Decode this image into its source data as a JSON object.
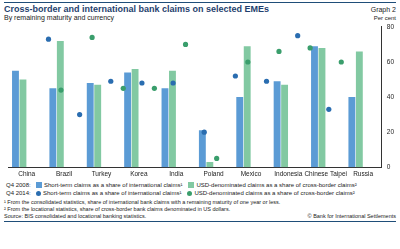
{
  "chart_data": {
    "type": "bar",
    "title": "Cross-border and international bank claims on selected EMEs",
    "graph_label": "Graph 2",
    "subtitle": "By remaining maturity and currency",
    "ylabel": "Per cent",
    "categories": [
      "China",
      "Brazil",
      "Turkey",
      "Korea",
      "India",
      "Poland",
      "Mexico",
      "Indonesia",
      "Chinese Taipei",
      "Russia"
    ],
    "series": [
      {
        "name": "Short-term claims as a share of international claims¹",
        "type": "bar",
        "color": "#5b9bd5",
        "values": [
          55,
          45,
          48,
          54,
          45,
          21,
          40,
          49,
          69,
          40
        ]
      },
      {
        "name": "USD-denominated claims as a share of cross-border claims²",
        "type": "bar",
        "color": "#82c9a2",
        "values": [
          50,
          72,
          47,
          56,
          55,
          3,
          69,
          47,
          68,
          66
        ]
      },
      {
        "name": "Short-term claims as a share of international claims¹",
        "type": "scatter",
        "marker": "circle",
        "color": "#2a6db0",
        "values": [
          73,
          30,
          49,
          48,
          48,
          20,
          52,
          49,
          75,
          33
        ]
      },
      {
        "name": "USD-denominated claims as a share of cross-border claims²",
        "type": "scatter",
        "marker": "circle",
        "color": "#3a9e6c",
        "values": [
          44,
          74,
          45,
          45,
          70,
          5,
          60,
          66,
          68,
          60
        ]
      }
    ],
    "legend_groups": [
      "Q4 2008:",
      "Q4 2014:"
    ],
    "legend": "bottom",
    "ylim": [
      0,
      80
    ],
    "yticks": [
      0,
      20,
      40,
      60,
      80
    ],
    "grid": false,
    "notes": [
      "¹ From the consolidated statistics, share of international bank claims with a remaining maturity of one year or less.",
      "² From the locational statistics, share of cross-border bank claims denominated in US dollars."
    ],
    "source": "Source: BIS consolidated and locational banking statistics.",
    "copyright": "© Bank for International Settlements"
  }
}
